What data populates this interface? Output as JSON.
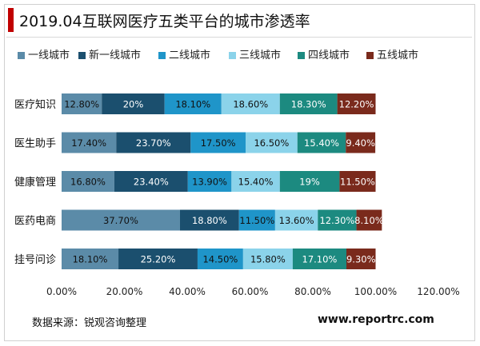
{
  "header": {
    "title": "2019.04互联网医疗五类平台的城市渗透率"
  },
  "footer": {
    "source": "数据来源：锐观咨询整理",
    "site": "www.reportrc.com"
  },
  "chart_data": {
    "type": "bar",
    "orientation": "horizontal",
    "stacked": true,
    "categories": [
      "医疗知识",
      "医生助手",
      "健康管理",
      "医药电商",
      "挂号问诊"
    ],
    "series": [
      {
        "name": "一线城市",
        "color": "#5b8ba8",
        "values": [
          12.8,
          17.4,
          16.8,
          37.7,
          18.1
        ],
        "labels": [
          "12.80%",
          "17.40%",
          "16.80%",
          "37.70%",
          "18.10%"
        ]
      },
      {
        "name": "新一线城市",
        "color": "#1b4f6e",
        "values": [
          20,
          23.7,
          23.4,
          18.8,
          25.2
        ],
        "labels": [
          "20%",
          "23.70%",
          "23.40%",
          "18.80%",
          "25.20%"
        ]
      },
      {
        "name": "二线城市",
        "color": "#1f95c9",
        "values": [
          18.1,
          17.5,
          13.9,
          11.5,
          14.5
        ],
        "labels": [
          "18.10%",
          "17.50%",
          "13.90%",
          "11.50%",
          "14.50%"
        ]
      },
      {
        "name": "三线城市",
        "color": "#8bd3ea",
        "values": [
          18.6,
          16.5,
          15.4,
          13.6,
          15.8
        ],
        "labels": [
          "18.60%",
          "16.50%",
          "15.40%",
          "13.60%",
          "15.80%"
        ]
      },
      {
        "name": "四线城市",
        "color": "#1c8a80",
        "values": [
          18.3,
          15.4,
          19,
          12.3,
          17.1
        ],
        "labels": [
          "18.30%",
          "15.40%",
          "19%",
          "12.30%",
          "17.10%"
        ]
      },
      {
        "name": "五线城市",
        "color": "#7a2a1c",
        "values": [
          12.2,
          9.4,
          11.5,
          8.1,
          9.3
        ],
        "labels": [
          "12.20%",
          "9.40%",
          "11.50%",
          "8.10%",
          "9.30%"
        ]
      }
    ],
    "xlim": [
      0,
      120
    ],
    "xticks": [
      0,
      20,
      40,
      60,
      80,
      100,
      120
    ],
    "xtick_labels": [
      "0.00%",
      "20.00%",
      "40.00%",
      "60.00%",
      "80.00%",
      "100.00%",
      "120.00%"
    ],
    "legend_position": "top",
    "grid": false
  }
}
